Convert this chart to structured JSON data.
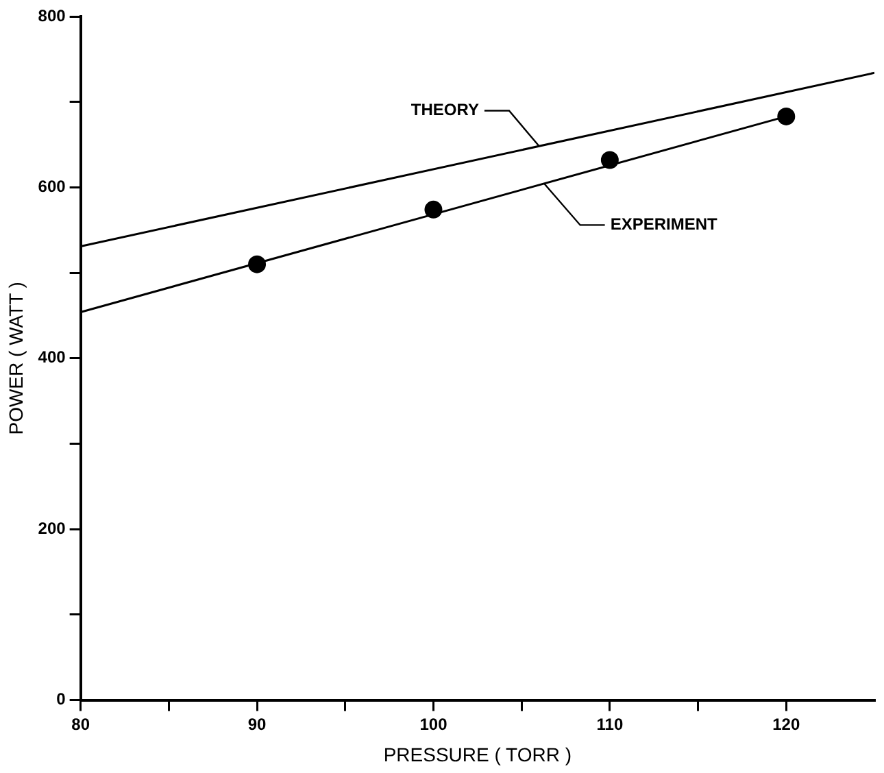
{
  "chart_data": {
    "type": "line",
    "xlabel": "PRESSURE ( TORR )",
    "ylabel": "POWER ( WATT )",
    "xlim": [
      80,
      125
    ],
    "xticks": [
      80,
      {
        "value": 85,
        "label": null
      },
      90,
      {
        "value": 95,
        "label": null
      },
      100,
      {
        "value": 105,
        "label": null
      },
      110,
      {
        "value": 115,
        "label": null
      },
      120
    ],
    "ylim": [
      0,
      800
    ],
    "yticks": [
      0,
      {
        "value": 100,
        "label": null
      },
      200,
      {
        "value": 300,
        "label": null
      },
      400,
      {
        "value": 500,
        "label": null
      },
      600,
      {
        "value": 700,
        "label": null
      },
      800
    ],
    "series": [
      {
        "type": "line",
        "color": "#000000",
        "x": [
          80,
          125
        ],
        "values": [
          531,
          734
        ],
        "marker": "none"
      },
      {
        "type": "line",
        "color": "#000000",
        "x": [
          80,
          120
        ],
        "values": [
          454,
          683
        ],
        "marker": "none"
      },
      {
        "type": "scatter",
        "color": "#000000",
        "x": [
          90,
          100,
          110,
          120
        ],
        "values": [
          510,
          574,
          632,
          683
        ],
        "marker": "circle"
      }
    ],
    "annotations": [
      {
        "text": "THEORY",
        "x": 106,
        "y": 648
      },
      {
        "text": "EXPERIMENT",
        "x": 106.3,
        "y": 604
      }
    ],
    "grid": false,
    "legend": false
  }
}
